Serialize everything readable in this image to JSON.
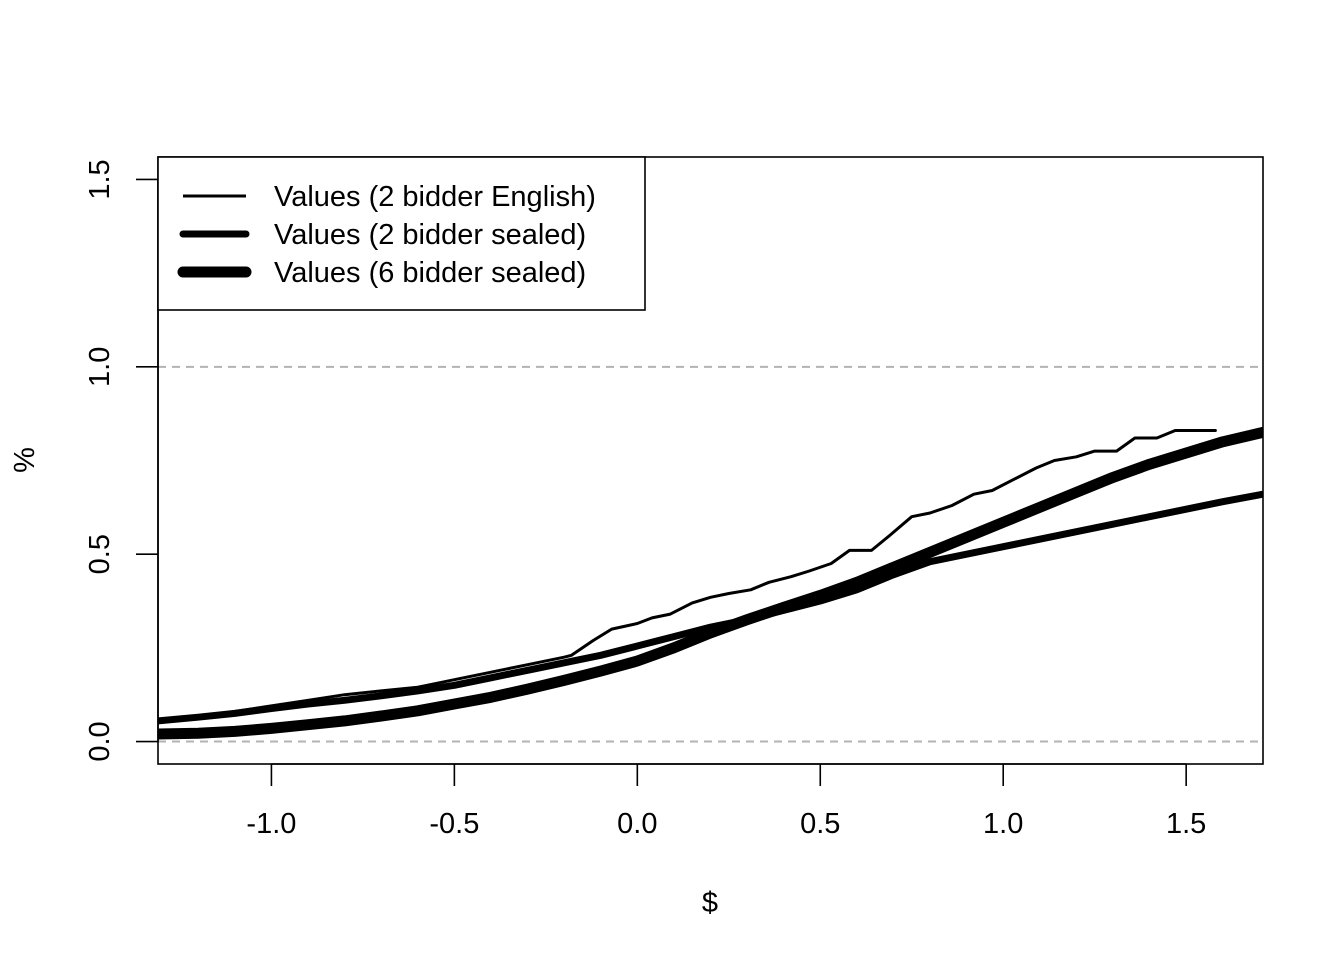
{
  "chart_data": {
    "type": "line",
    "title": "",
    "xlabel": "$",
    "ylabel": "%",
    "xlim": [
      -1.31,
      1.71
    ],
    "ylim": [
      -0.06,
      1.56
    ],
    "x_ticks": [
      -1.0,
      -0.5,
      0.0,
      0.5,
      1.0,
      1.5
    ],
    "x_tick_labels": [
      "-1.0",
      "-0.5",
      "0.0",
      "0.5",
      "1.0",
      "1.5"
    ],
    "y_ticks": [
      0.0,
      0.5,
      1.0,
      1.5
    ],
    "y_tick_labels": [
      "0.0",
      "0.5",
      "1.0",
      "1.5"
    ],
    "reference_lines": [
      0.0,
      1.0
    ],
    "legend_position": "top-left",
    "grid": false,
    "series": [
      {
        "name": "Values (2 bidder English)",
        "color": "#000000",
        "x": [
          -1.31,
          -1.2,
          -1.1,
          -1.0,
          -0.9,
          -0.8,
          -0.7,
          -0.6,
          -0.5,
          -0.4,
          -0.3,
          -0.2,
          -0.18,
          -0.12,
          -0.07,
          0.0,
          0.04,
          0.09,
          0.15,
          0.2,
          0.25,
          0.31,
          0.36,
          0.42,
          0.47,
          0.53,
          0.58,
          0.64,
          0.69,
          0.75,
          0.8,
          0.86,
          0.92,
          0.97,
          1.03,
          1.09,
          1.14,
          1.2,
          1.25,
          1.31,
          1.36,
          1.42,
          1.47,
          1.53,
          1.58
        ],
        "y": [
          0.05,
          0.065,
          0.08,
          0.095,
          0.11,
          0.125,
          0.135,
          0.145,
          0.165,
          0.185,
          0.205,
          0.225,
          0.23,
          0.27,
          0.3,
          0.315,
          0.33,
          0.34,
          0.37,
          0.385,
          0.395,
          0.405,
          0.425,
          0.44,
          0.455,
          0.475,
          0.51,
          0.51,
          0.55,
          0.6,
          0.61,
          0.63,
          0.66,
          0.67,
          0.7,
          0.73,
          0.75,
          0.76,
          0.775,
          0.775,
          0.81,
          0.81,
          0.83,
          0.83,
          0.83
        ]
      },
      {
        "name": "Values (2 bidder sealed)",
        "color": "#000000",
        "x": [
          -1.31,
          -1.2,
          -1.1,
          -1.0,
          -0.9,
          -0.8,
          -0.7,
          -0.6,
          -0.5,
          -0.4,
          -0.3,
          -0.2,
          -0.1,
          0.0,
          0.1,
          0.2,
          0.3,
          0.4,
          0.5,
          0.6,
          0.7,
          0.8,
          0.9,
          1.0,
          1.1,
          1.2,
          1.3,
          1.4,
          1.5,
          1.6,
          1.71
        ],
        "y": [
          0.055,
          0.065,
          0.075,
          0.088,
          0.1,
          0.11,
          0.122,
          0.135,
          0.15,
          0.17,
          0.19,
          0.21,
          0.23,
          0.255,
          0.28,
          0.305,
          0.325,
          0.35,
          0.375,
          0.405,
          0.445,
          0.48,
          0.5,
          0.52,
          0.54,
          0.56,
          0.58,
          0.6,
          0.62,
          0.64,
          0.66
        ]
      },
      {
        "name": "Values (6 bidder sealed)",
        "color": "#000000",
        "x": [
          -1.31,
          -1.2,
          -1.1,
          -1.0,
          -0.9,
          -0.8,
          -0.7,
          -0.6,
          -0.5,
          -0.4,
          -0.3,
          -0.2,
          -0.1,
          0.0,
          0.1,
          0.2,
          0.3,
          0.4,
          0.5,
          0.6,
          0.7,
          0.8,
          0.9,
          1.0,
          1.1,
          1.2,
          1.3,
          1.4,
          1.5,
          1.6,
          1.71
        ],
        "y": [
          0.02,
          0.022,
          0.027,
          0.035,
          0.045,
          0.055,
          0.068,
          0.082,
          0.1,
          0.118,
          0.14,
          0.163,
          0.188,
          0.215,
          0.25,
          0.29,
          0.325,
          0.358,
          0.39,
          0.425,
          0.465,
          0.505,
          0.545,
          0.585,
          0.625,
          0.665,
          0.705,
          0.74,
          0.77,
          0.8,
          0.825
        ]
      }
    ]
  }
}
